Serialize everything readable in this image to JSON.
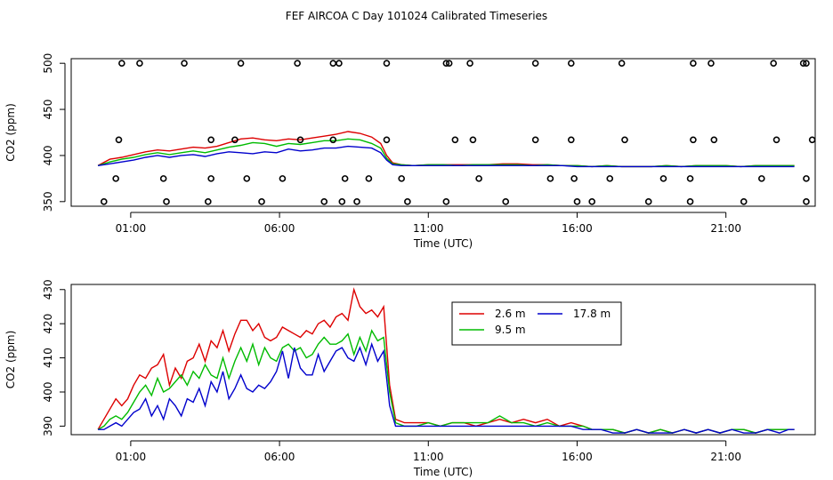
{
  "title": "FEF AIRCOA C  Day 101024  Calibrated Timeseries",
  "chart_data": [
    {
      "type": "line",
      "panel": "top",
      "xlabel": "Time (UTC)",
      "ylabel": "CO2 (ppm)",
      "xlim": [
        -1.0,
        24.0
      ],
      "ylim": [
        345,
        505
      ],
      "xticks": [
        {
          "v": 1,
          "label": "01:00"
        },
        {
          "v": 6,
          "label": "06:00"
        },
        {
          "v": 11,
          "label": "11:00"
        },
        {
          "v": 16,
          "label": "16:00"
        },
        {
          "v": 21,
          "label": "21:00"
        }
      ],
      "yticks": [
        {
          "v": 350,
          "label": "350"
        },
        {
          "v": 400,
          "label": "400"
        },
        {
          "v": 450,
          "label": "450"
        },
        {
          "v": 500,
          "label": "500"
        }
      ],
      "series": [
        {
          "name": "2.6 m",
          "color": "#dd0000",
          "x": [
            -0.1,
            0.3,
            0.7,
            1.1,
            1.5,
            1.9,
            2.3,
            2.7,
            3.1,
            3.5,
            3.9,
            4.3,
            4.7,
            5.1,
            5.5,
            5.9,
            6.3,
            6.7,
            7.1,
            7.5,
            7.9,
            8.3,
            8.7,
            9.1,
            9.4,
            9.6,
            9.8,
            10.1,
            10.5,
            11,
            11.5,
            12,
            12.5,
            13,
            13.5,
            14,
            14.5,
            15,
            15.5,
            16,
            16.5,
            17,
            17.5,
            18,
            18.5,
            19,
            19.5,
            20,
            20.5,
            21,
            21.5,
            22,
            22.5,
            23,
            23.3
          ],
          "y": [
            389,
            396,
            398,
            401,
            404,
            406,
            405,
            407,
            409,
            408,
            410,
            414,
            418,
            419,
            417,
            416,
            418,
            417,
            419,
            421,
            423,
            426,
            424,
            420,
            413,
            400,
            392,
            390,
            389,
            390,
            390,
            390,
            390,
            390,
            391,
            391,
            390,
            390,
            389,
            389,
            388,
            389,
            388,
            388,
            388,
            389,
            388,
            389,
            389,
            389,
            388,
            389,
            389,
            389,
            389
          ]
        },
        {
          "name": "9.5 m",
          "color": "#00bb00",
          "x": [
            -0.1,
            0.3,
            0.7,
            1.1,
            1.5,
            1.9,
            2.3,
            2.7,
            3.1,
            3.5,
            3.9,
            4.3,
            4.7,
            5.1,
            5.5,
            5.9,
            6.3,
            6.7,
            7.1,
            7.5,
            7.9,
            8.3,
            8.7,
            9.1,
            9.4,
            9.6,
            9.8,
            10.1,
            10.5,
            11,
            11.5,
            12,
            12.5,
            13,
            13.5,
            14,
            14.5,
            15,
            15.5,
            16,
            16.5,
            17,
            17.5,
            18,
            18.5,
            19,
            19.5,
            20,
            20.5,
            21,
            21.5,
            22,
            22.5,
            23,
            23.3
          ],
          "y": [
            389,
            393,
            396,
            398,
            401,
            403,
            401,
            403,
            405,
            403,
            406,
            409,
            411,
            414,
            413,
            410,
            413,
            412,
            414,
            416,
            416,
            418,
            417,
            413,
            408,
            397,
            391,
            390,
            389,
            390,
            390,
            389,
            390,
            390,
            390,
            390,
            389,
            390,
            389,
            389,
            388,
            389,
            388,
            388,
            388,
            389,
            388,
            389,
            389,
            389,
            388,
            389,
            389,
            389,
            389
          ]
        },
        {
          "name": "17.8 m",
          "color": "#0000cc",
          "x": [
            -0.1,
            0.3,
            0.7,
            1.1,
            1.5,
            1.9,
            2.3,
            2.7,
            3.1,
            3.5,
            3.9,
            4.3,
            4.7,
            5.1,
            5.5,
            5.9,
            6.3,
            6.7,
            7.1,
            7.5,
            7.9,
            8.3,
            8.7,
            9.1,
            9.4,
            9.6,
            9.8,
            10.1,
            10.5,
            11,
            11.5,
            12,
            12.5,
            13,
            13.5,
            14,
            14.5,
            15,
            15.5,
            16,
            16.5,
            17,
            17.5,
            18,
            18.5,
            19,
            19.5,
            20,
            20.5,
            21,
            21.5,
            22,
            22.5,
            23,
            23.3
          ],
          "y": [
            389,
            391,
            393,
            395,
            398,
            400,
            398,
            400,
            401,
            399,
            402,
            404,
            403,
            402,
            404,
            403,
            407,
            405,
            406,
            408,
            408,
            410,
            409,
            408,
            403,
            395,
            390,
            389,
            389,
            389,
            389,
            389,
            389,
            389,
            389,
            389,
            389,
            389,
            389,
            388,
            388,
            388,
            388,
            388,
            388,
            388,
            388,
            388,
            388,
            388,
            388,
            388,
            388,
            388,
            388
          ]
        }
      ],
      "points": {
        "color": "#000000",
        "x": [
          0.7,
          1.3,
          2.8,
          4.7,
          6.6,
          7.8,
          8.0,
          9.6,
          11.6,
          11.7,
          12.4,
          14.6,
          15.8,
          17.5,
          19.9,
          20.5,
          22.6,
          23.6,
          23.7,
          0.1,
          2.2,
          3.6,
          5.4,
          7.5,
          8.1,
          8.6,
          10.3,
          11.6,
          13.6,
          16.0,
          16.5,
          18.4,
          19.8,
          21.6,
          23.7,
          0.5,
          2.1,
          3.7,
          4.9,
          6.1,
          8.2,
          9.0,
          10.1,
          12.7,
          15.1,
          15.9,
          17.1,
          18.9,
          19.8,
          22.2,
          23.7
        ],
        "y": [
          500,
          500,
          500,
          500,
          500,
          500,
          500,
          500,
          500,
          500,
          500,
          500,
          500,
          500,
          500,
          500,
          500,
          500,
          500,
          350,
          350,
          350,
          350,
          350,
          350,
          350,
          350,
          350,
          350,
          350,
          350,
          350,
          350,
          350,
          350,
          375,
          375,
          375,
          375,
          375,
          375,
          375,
          375,
          375,
          375,
          375,
          375,
          375,
          375,
          375,
          375
        ]
      },
      "points2": {
        "x": [
          0.6,
          3.7,
          4.5,
          6.7,
          7.8,
          9.6,
          11.9,
          12.5,
          14.6,
          15.8,
          17.6,
          19.9,
          20.6,
          22.7,
          23.9
        ],
        "y": [
          417,
          417,
          417,
          417,
          417,
          417,
          417,
          417,
          417,
          417,
          417,
          417,
          417,
          417,
          417
        ]
      }
    },
    {
      "type": "line",
      "panel": "bottom",
      "xlabel": "Time (UTC)",
      "ylabel": "CO2 (ppm)",
      "xlim": [
        -1.0,
        24.0
      ],
      "ylim": [
        387.5,
        431.5
      ],
      "xticks": [
        {
          "v": 1,
          "label": "01:00"
        },
        {
          "v": 6,
          "label": "06:00"
        },
        {
          "v": 11,
          "label": "11:00"
        },
        {
          "v": 16,
          "label": "16:00"
        },
        {
          "v": 21,
          "label": "21:00"
        }
      ],
      "yticks": [
        {
          "v": 390,
          "label": "390"
        },
        {
          "v": 400,
          "label": "400"
        },
        {
          "v": 410,
          "label": "410"
        },
        {
          "v": 420,
          "label": "420"
        },
        {
          "v": 430,
          "label": "430"
        }
      ],
      "legend": {
        "position": "top-center",
        "entries": [
          "2.6 m",
          "17.8 m",
          "9.5 m"
        ]
      },
      "series": [
        {
          "name": "2.6 m",
          "color": "#dd0000",
          "x": [
            -0.1,
            0.1,
            0.3,
            0.5,
            0.7,
            0.9,
            1.1,
            1.3,
            1.5,
            1.7,
            1.9,
            2.1,
            2.3,
            2.5,
            2.7,
            2.9,
            3.1,
            3.3,
            3.5,
            3.7,
            3.9,
            4.1,
            4.3,
            4.5,
            4.7,
            4.9,
            5.1,
            5.3,
            5.5,
            5.7,
            5.9,
            6.1,
            6.3,
            6.5,
            6.7,
            6.9,
            7.1,
            7.3,
            7.5,
            7.7,
            7.9,
            8.1,
            8.3,
            8.5,
            8.7,
            8.9,
            9.1,
            9.3,
            9.5,
            9.7,
            9.9,
            10.2,
            10.6,
            11,
            11.4,
            11.8,
            12.2,
            12.6,
            13,
            13.4,
            13.8,
            14.2,
            14.6,
            15,
            15.4,
            15.8,
            16.2,
            16.5,
            16.8,
            17.2,
            17.6,
            18,
            18.4,
            18.8,
            19.2,
            19.6,
            20,
            20.4,
            20.8,
            21.2,
            21.6,
            22,
            22.4,
            22.8,
            23.1,
            23.3
          ],
          "y": [
            389,
            392,
            395,
            398,
            396,
            398,
            402,
            405,
            404,
            407,
            408,
            411,
            402,
            407,
            404,
            409,
            410,
            414,
            409,
            415,
            413,
            418,
            412,
            417,
            421,
            421,
            418,
            420,
            416,
            415,
            416,
            419,
            418,
            417,
            416,
            418,
            417,
            420,
            421,
            419,
            422,
            423,
            421,
            430,
            425,
            423,
            424,
            422,
            425,
            402,
            392,
            391,
            391,
            391,
            390,
            391,
            391,
            390,
            391,
            392,
            391,
            392,
            391,
            392,
            390,
            391,
            390,
            389,
            389,
            389,
            388,
            389,
            388,
            389,
            388,
            389,
            388,
            389,
            388,
            389,
            389,
            388,
            389,
            389,
            389,
            389
          ]
        },
        {
          "name": "9.5 m",
          "color": "#00bb00",
          "x": [
            -0.1,
            0.1,
            0.3,
            0.5,
            0.7,
            0.9,
            1.1,
            1.3,
            1.5,
            1.7,
            1.9,
            2.1,
            2.3,
            2.5,
            2.7,
            2.9,
            3.1,
            3.3,
            3.5,
            3.7,
            3.9,
            4.1,
            4.3,
            4.5,
            4.7,
            4.9,
            5.1,
            5.3,
            5.5,
            5.7,
            5.9,
            6.1,
            6.3,
            6.5,
            6.7,
            6.9,
            7.1,
            7.3,
            7.5,
            7.7,
            7.9,
            8.1,
            8.3,
            8.5,
            8.7,
            8.9,
            9.1,
            9.3,
            9.5,
            9.7,
            9.9,
            10.2,
            10.6,
            11,
            11.4,
            11.8,
            12.2,
            12.6,
            13,
            13.4,
            13.8,
            14.2,
            14.6,
            15,
            15.4,
            15.8,
            16.2,
            16.5,
            16.8,
            17.2,
            17.6,
            18,
            18.4,
            18.8,
            19.2,
            19.6,
            20,
            20.4,
            20.8,
            21.2,
            21.6,
            22,
            22.4,
            22.8,
            23.1,
            23.3
          ],
          "y": [
            389,
            390,
            392,
            393,
            392,
            394,
            397,
            400,
            402,
            399,
            404,
            400,
            401,
            403,
            405,
            402,
            406,
            404,
            408,
            405,
            404,
            410,
            404,
            409,
            413,
            409,
            414,
            408,
            413,
            410,
            409,
            413,
            414,
            412,
            413,
            410,
            411,
            414,
            416,
            414,
            414,
            415,
            417,
            411,
            416,
            412,
            418,
            415,
            416,
            400,
            391,
            390,
            390,
            391,
            390,
            391,
            391,
            391,
            391,
            393,
            391,
            391,
            390,
            391,
            390,
            390,
            390,
            389,
            389,
            389,
            388,
            389,
            388,
            389,
            388,
            389,
            388,
            389,
            388,
            389,
            389,
            388,
            389,
            389,
            389,
            389
          ]
        },
        {
          "name": "17.8 m",
          "color": "#0000cc",
          "x": [
            -0.1,
            0.1,
            0.3,
            0.5,
            0.7,
            0.9,
            1.1,
            1.3,
            1.5,
            1.7,
            1.9,
            2.1,
            2.3,
            2.5,
            2.7,
            2.9,
            3.1,
            3.3,
            3.5,
            3.7,
            3.9,
            4.1,
            4.3,
            4.5,
            4.7,
            4.9,
            5.1,
            5.3,
            5.5,
            5.7,
            5.9,
            6.1,
            6.3,
            6.5,
            6.7,
            6.9,
            7.1,
            7.3,
            7.5,
            7.7,
            7.9,
            8.1,
            8.3,
            8.5,
            8.7,
            8.9,
            9.1,
            9.3,
            9.5,
            9.7,
            9.9,
            10.2,
            10.6,
            11,
            11.4,
            11.8,
            12.2,
            12.6,
            13,
            13.4,
            13.8,
            14.2,
            14.6,
            15,
            15.4,
            15.8,
            16.2,
            16.5,
            16.8,
            17.2,
            17.6,
            18,
            18.4,
            18.8,
            19.2,
            19.6,
            20,
            20.4,
            20.8,
            21.2,
            21.6,
            22,
            22.4,
            22.8,
            23.1,
            23.3
          ],
          "y": [
            389,
            389,
            390,
            391,
            390,
            392,
            394,
            395,
            398,
            393,
            396,
            392,
            398,
            396,
            393,
            398,
            397,
            401,
            396,
            403,
            400,
            406,
            398,
            401,
            405,
            401,
            400,
            402,
            401,
            403,
            406,
            412,
            404,
            413,
            407,
            405,
            405,
            411,
            406,
            409,
            412,
            413,
            410,
            409,
            413,
            408,
            414,
            409,
            412,
            396,
            390,
            390,
            390,
            390,
            390,
            390,
            390,
            390,
            390,
            390,
            390,
            390,
            390,
            390,
            390,
            390,
            389,
            389,
            389,
            388,
            388,
            389,
            388,
            388,
            388,
            389,
            388,
            389,
            388,
            389,
            388,
            388,
            389,
            388,
            389,
            389
          ]
        }
      ]
    }
  ]
}
